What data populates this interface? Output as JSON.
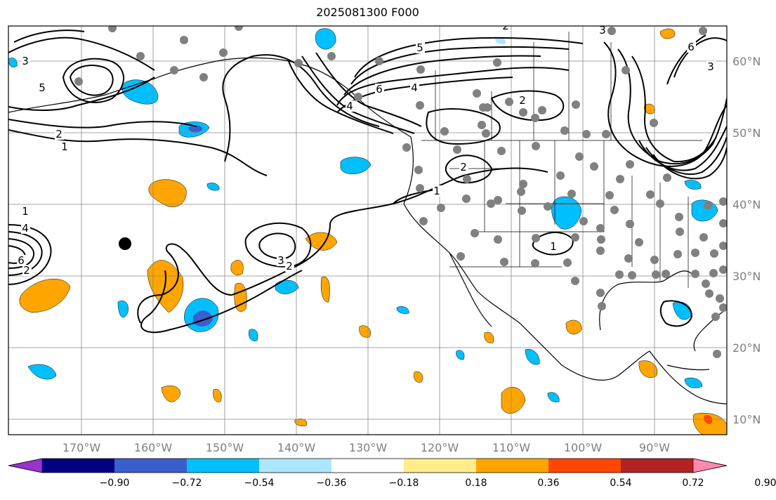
{
  "title": "2025081300 F000",
  "lon_labels": [
    "170°W",
    "160°W",
    "150°W",
    "140°W",
    "130°W",
    "120°W",
    "110°W",
    "100°W",
    "90°W"
  ],
  "lat_labels": [
    "60°N",
    "50°N",
    "40°N",
    "30°N",
    "20°N",
    "10°N"
  ],
  "colorbar": {
    "tick_labels": [
      "−0.90",
      "−0.72",
      "−0.54",
      "−0.36",
      "−0.18",
      "0.18",
      "0.36",
      "0.54",
      "0.72",
      "0.90"
    ],
    "colors": [
      "#9933cc",
      "#000080",
      "#3a5fcd",
      "#00bfff",
      "#aee6ff",
      "#ffffff",
      "#ffec8b",
      "#ffa500",
      "#ff4500",
      "#b22222",
      "#ff88b0"
    ]
  },
  "contour_labels": [
    "3",
    "1",
    "4",
    "6",
    "2",
    "5",
    "6",
    "4",
    "2",
    "3",
    "2",
    "1",
    "2",
    "1",
    "3",
    "2",
    "1",
    "5",
    "6",
    "3",
    "4",
    "2"
  ]
}
